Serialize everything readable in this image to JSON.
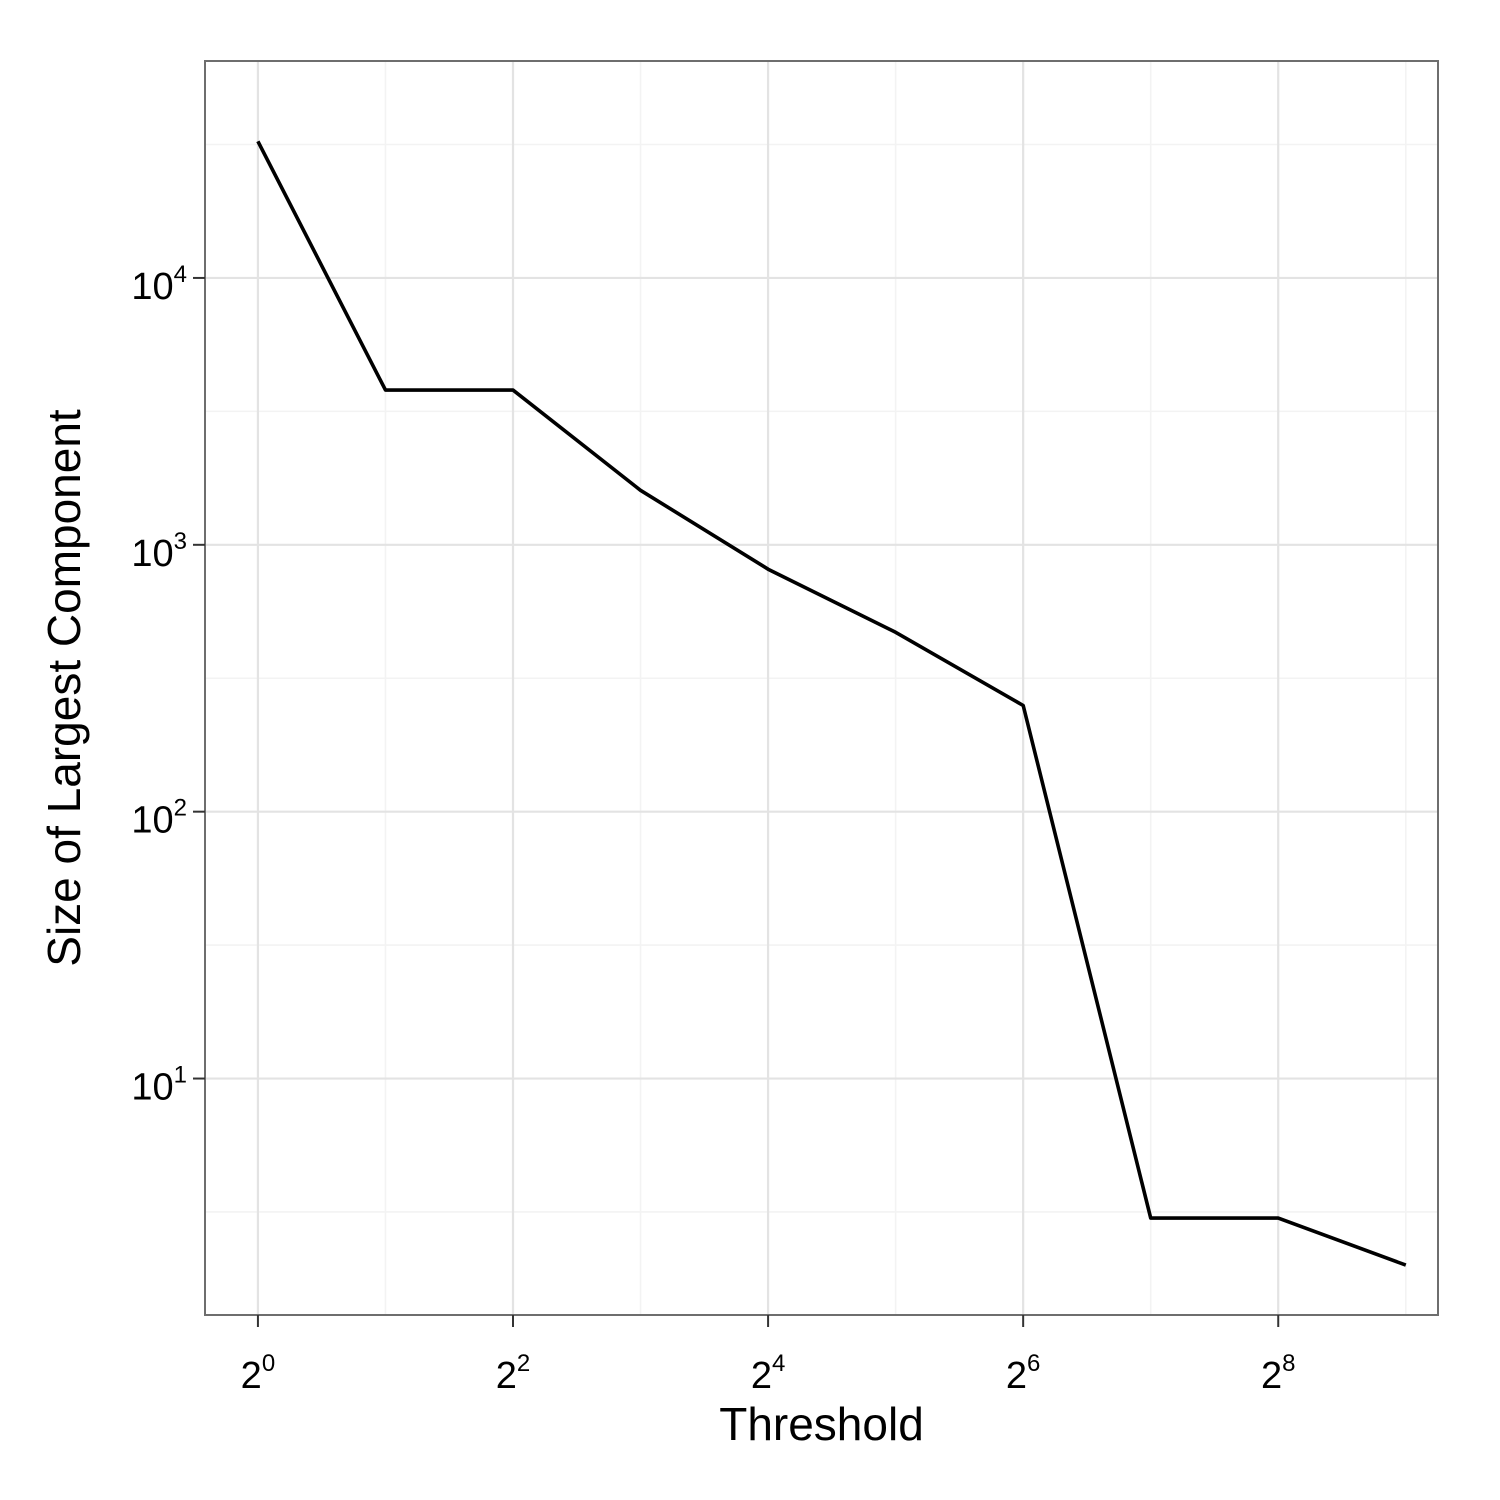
{
  "chart_data": {
    "type": "line",
    "xlabel": "Threshold",
    "ylabel": "Size of Largest Component",
    "x_scale": "log2",
    "y_scale": "log10",
    "grid": true,
    "x_ticks": [
      {
        "value": 1,
        "base": "2",
        "exp": "0"
      },
      {
        "value": 4,
        "base": "2",
        "exp": "2"
      },
      {
        "value": 16,
        "base": "2",
        "exp": "4"
      },
      {
        "value": 64,
        "base": "2",
        "exp": "6"
      },
      {
        "value": 256,
        "base": "2",
        "exp": "8"
      }
    ],
    "y_ticks": [
      {
        "value": 10,
        "base": "10",
        "exp": "1"
      },
      {
        "value": 100,
        "base": "10",
        "exp": "2"
      },
      {
        "value": 1000,
        "base": "10",
        "exp": "3"
      },
      {
        "value": 10000,
        "base": "10",
        "exp": "4"
      }
    ],
    "xlim": [
      0.75,
      610
    ],
    "ylim": [
      1.3,
      65000
    ],
    "series": [
      {
        "color": "#000000",
        "x": [
          1,
          2,
          4,
          8,
          16,
          32,
          64,
          128,
          256,
          512
        ],
        "y": [
          32500,
          3800,
          3800,
          1600,
          810,
          470,
          250,
          3,
          3,
          2
        ]
      }
    ]
  }
}
